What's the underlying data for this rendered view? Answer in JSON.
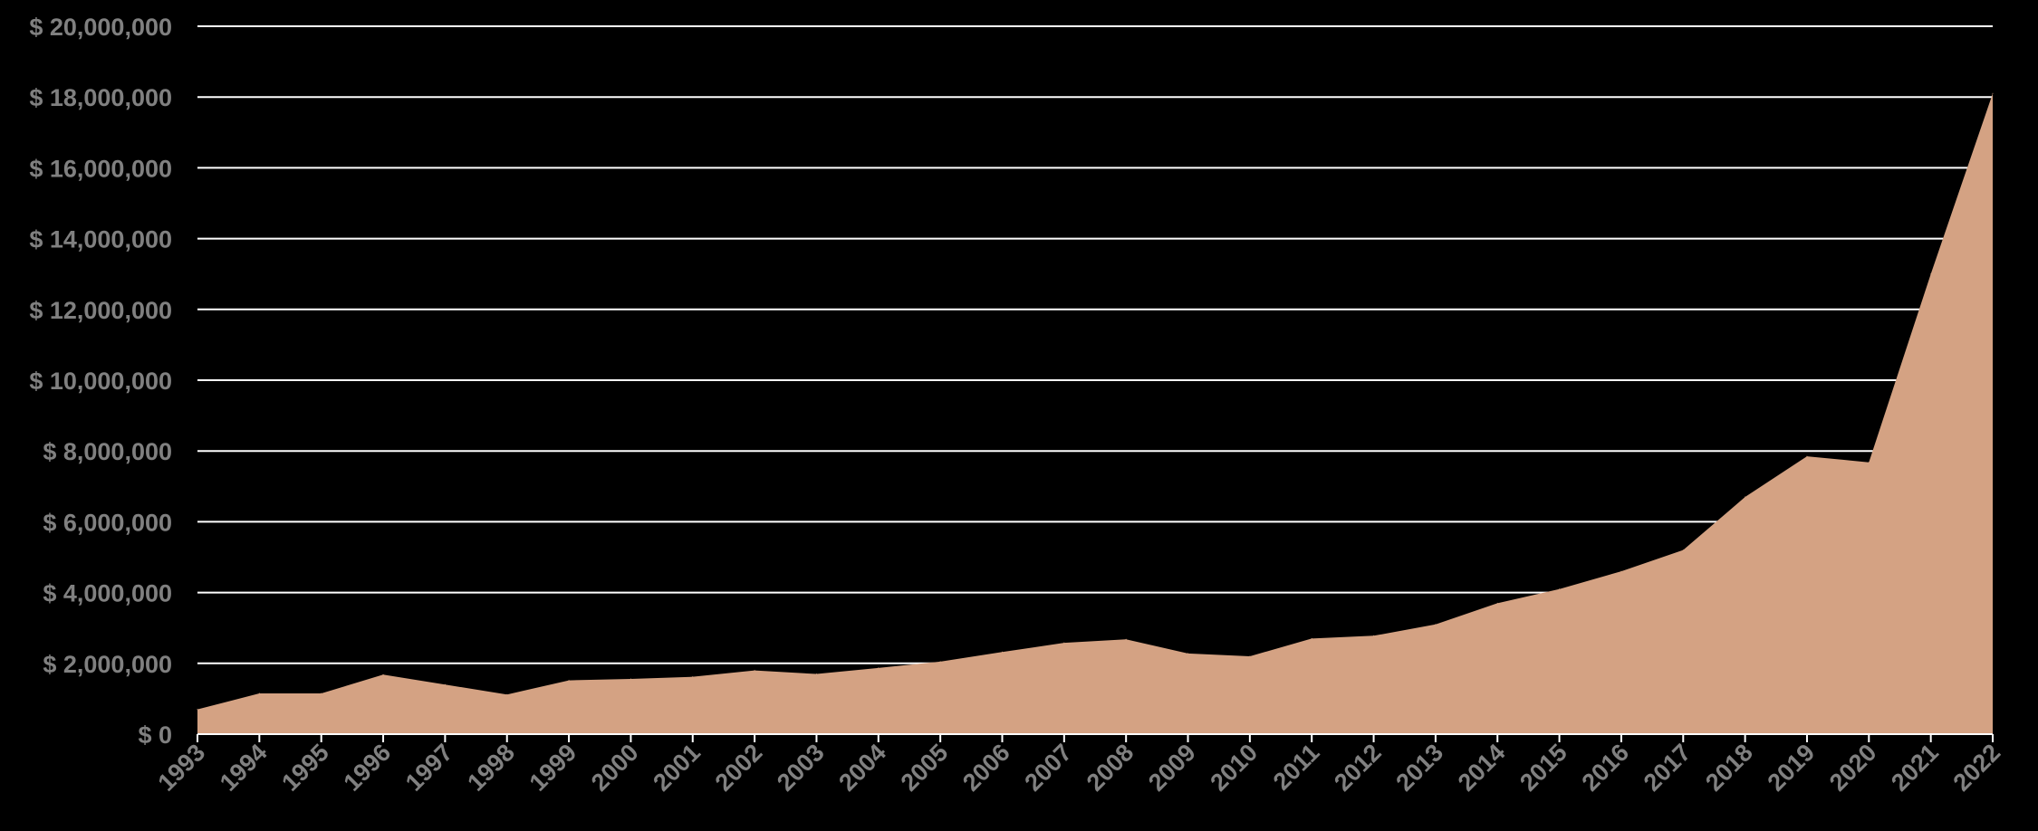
{
  "chart_data": {
    "type": "area",
    "title": "",
    "xlabel": "",
    "ylabel": "",
    "x": [
      "1993",
      "1994",
      "1995",
      "1996",
      "1997",
      "1998",
      "1999",
      "2000",
      "2001",
      "2002",
      "2003",
      "2004",
      "2005",
      "2006",
      "2007",
      "2008",
      "2009",
      "2010",
      "2011",
      "2012",
      "2013",
      "2014",
      "2015",
      "2016",
      "2017",
      "2018",
      "2019",
      "2020",
      "2021",
      "2022"
    ],
    "series": [
      {
        "values": [
          700000,
          1150000,
          1150000,
          1680000,
          1400000,
          1120000,
          1520000,
          1560000,
          1620000,
          1800000,
          1700000,
          1870000,
          2050000,
          2320000,
          2580000,
          2680000,
          2280000,
          2200000,
          2700000,
          2780000,
          3100000,
          3700000,
          4100000,
          4600000,
          5200000,
          6700000,
          7850000,
          7680000,
          13000000,
          18100000
        ]
      }
    ],
    "ylim": [
      0,
      20000000
    ],
    "yticks": [
      0,
      2000000,
      4000000,
      6000000,
      8000000,
      10000000,
      12000000,
      14000000,
      16000000,
      18000000,
      20000000
    ],
    "ytick_labels": [
      "$ 0",
      "$ 2,000,000",
      "$ 4,000,000",
      "$ 6,000,000",
      "$ 8,000,000",
      "$ 10,000,000",
      "$ 12,000,000",
      "$ 14,000,000",
      "$ 16,000,000",
      "$ 18,000,000",
      "$ 20,000,000"
    ],
    "grid": "horizontal",
    "legend": "none",
    "colors": {
      "background": "#000000",
      "area": "#d4a283",
      "grid": "#ffffff",
      "tick_label": "#808080"
    }
  }
}
